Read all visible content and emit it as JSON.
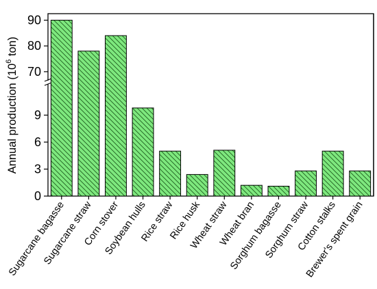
{
  "chart_data": {
    "type": "bar",
    "title": "",
    "xlabel": "",
    "ylabel": {
      "prefix": "Annual production (10",
      "superscript": "6",
      "suffix": " ton)"
    },
    "categories": [
      "Sugarcane bagasse",
      "Sugarcane straw",
      "Corn stover",
      "Soybean hulls",
      "Rice straw",
      "Rice husk",
      "Wheat straw",
      "Wheat bran",
      "Sorghum bagasse",
      "Sorghum straw",
      "Cotton stalks",
      "Brewer's spent grain"
    ],
    "values": [
      90,
      78,
      84,
      9.8,
      5,
      2.4,
      5.1,
      1.2,
      1.1,
      2.8,
      5,
      2.8
    ],
    "y_axis": "broken",
    "lower_segment": {
      "ylim": [
        0,
        12
      ],
      "ticks": [
        0,
        3,
        6,
        9
      ]
    },
    "upper_segment": {
      "ylim": [
        66,
        92
      ],
      "ticks": [
        70,
        80,
        90
      ]
    },
    "bar_fill": "#7ee87e",
    "bar_hatch": "diagonal",
    "bar_edge": "#000000",
    "grid": false,
    "legend": "none"
  }
}
